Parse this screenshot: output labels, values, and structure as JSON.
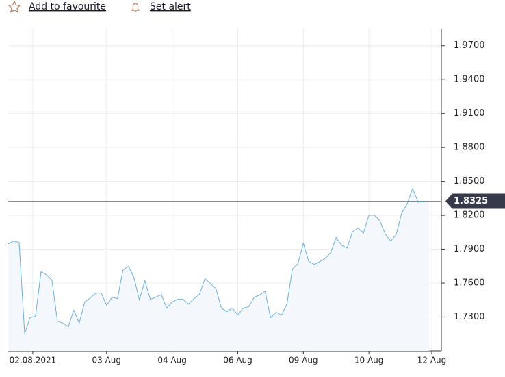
{
  "header": {
    "favourite": "Add to favourite",
    "alert": "Set alert"
  },
  "chart_data": {
    "type": "line",
    "color": "#6aaede",
    "fill": "#f4f8fc",
    "values": [
      1.7947,
      1.7972,
      1.7959,
      1.7155,
      1.7294,
      1.7306,
      1.7699,
      1.7675,
      1.7627,
      1.7264,
      1.7246,
      1.7215,
      1.7361,
      1.7246,
      1.7433,
      1.7469,
      1.7512,
      1.7512,
      1.7403,
      1.7475,
      1.7463,
      1.7717,
      1.7748,
      1.7651,
      1.7451,
      1.7621,
      1.7457,
      1.7475,
      1.75,
      1.7379,
      1.7433,
      1.7457,
      1.7457,
      1.7415,
      1.7463,
      1.75,
      1.7639,
      1.7596,
      1.7554,
      1.7379,
      1.7348,
      1.7379,
      1.7318,
      1.7379,
      1.7391,
      1.7475,
      1.7494,
      1.753,
      1.7294,
      1.7342,
      1.7318,
      1.7415,
      1.7724,
      1.7772,
      1.7953,
      1.779,
      1.7766,
      1.779,
      1.782,
      1.7869,
      1.8002,
      1.7935,
      1.7911,
      1.8056,
      1.8087,
      1.8044,
      1.8201,
      1.8201,
      1.8153,
      1.8032,
      1.7972,
      1.8032,
      1.822,
      1.8304,
      1.8437,
      1.8316,
      1.8322,
      1.8325
    ],
    "xticks": [
      {
        "value": 4.5,
        "label": "02.08.2021"
      },
      {
        "value": 18,
        "label": "03 Aug"
      },
      {
        "value": 30,
        "label": "04 Aug"
      },
      {
        "value": 42,
        "label": "06 Aug"
      },
      {
        "value": 54,
        "label": "09 Aug"
      },
      {
        "value": 66,
        "label": "10 Aug"
      },
      {
        "value": 77.5,
        "label": "12 Aug"
      }
    ],
    "ylim": [
      1.7,
      1.985
    ],
    "yticks": [
      {
        "value": 1.97,
        "label": "1.9700"
      },
      {
        "value": 1.94,
        "label": "1.9400"
      },
      {
        "value": 1.91,
        "label": "1.9100"
      },
      {
        "value": 1.88,
        "label": "1.8800"
      },
      {
        "value": 1.85,
        "label": "1.8500"
      },
      {
        "value": 1.82,
        "label": "1.8200"
      },
      {
        "value": 1.79,
        "label": "1.7900"
      },
      {
        "value": 1.76,
        "label": "1.7600"
      },
      {
        "value": 1.73,
        "label": "1.7300"
      }
    ],
    "current_value": 1.8325,
    "grid": true
  }
}
